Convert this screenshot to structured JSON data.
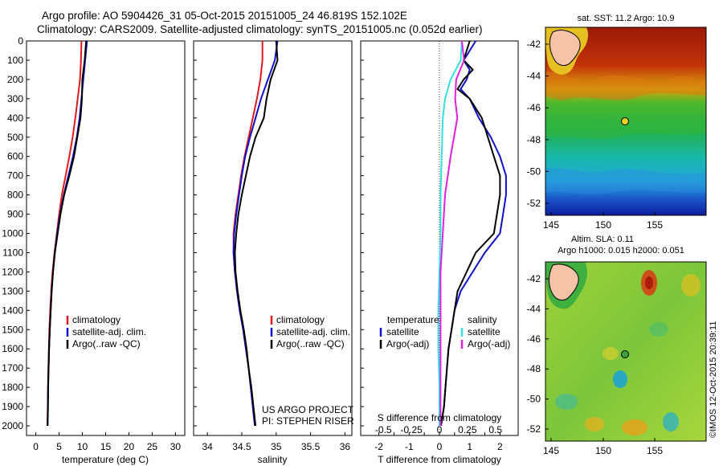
{
  "header": {
    "line1": "Argo profile: AO 5904426_31 05-Oct-2015 20151005_24 46.819S 152.102E",
    "line2": "Climatology: CARS2009. Satellite-adjusted climatology: synTS_20151005.nc (0.052d earlier)"
  },
  "colors": {
    "climatology": "#e31a1c",
    "satellite": "#1010cc",
    "argo": "#000000",
    "sal_satellite": "#33e0e0",
    "sal_argo": "#e020e0"
  },
  "chart_data": [
    {
      "type": "line",
      "xlabel": "temperature (deg C)",
      "ylabel": "",
      "xlim": [
        -2,
        32
      ],
      "ylim": [
        2050,
        0
      ],
      "x_ticks": [
        0,
        5,
        10,
        15,
        20,
        25,
        30
      ],
      "y_ticks": [
        0,
        100,
        200,
        300,
        400,
        500,
        600,
        700,
        800,
        900,
        1000,
        1100,
        1200,
        1300,
        1400,
        1500,
        1600,
        1700,
        1800,
        1900,
        2000
      ],
      "legend": [
        "climatology",
        "satellite-adj. clim.",
        "Argo(..raw -QC)"
      ],
      "legend_position": "lower-center",
      "series": [
        {
          "name": "climatology",
          "depth": [
            0,
            100,
            200,
            300,
            400,
            500,
            600,
            700,
            800,
            900,
            1000,
            1100,
            1200,
            1300,
            1400,
            1500,
            1600,
            1700,
            1800,
            1900,
            2000
          ],
          "values": [
            9.8,
            9.7,
            9.5,
            9.0,
            8.5,
            7.9,
            7.2,
            6.4,
            5.6,
            5.0,
            4.5,
            4.0,
            3.6,
            3.3,
            3.1,
            2.9,
            2.8,
            2.7,
            2.6,
            2.55,
            2.5
          ]
        },
        {
          "name": "satellite-adj. clim.",
          "depth": [
            0,
            100,
            200,
            300,
            400,
            500,
            600,
            700,
            800,
            900,
            1000,
            1100,
            1200,
            1300,
            1400,
            1500,
            1600,
            1700,
            1800,
            1900,
            2000
          ],
          "values": [
            11.0,
            10.6,
            10.2,
            9.8,
            9.4,
            8.8,
            8.0,
            7.0,
            6.0,
            5.2,
            4.6,
            4.1,
            3.7,
            3.4,
            3.2,
            3.0,
            2.85,
            2.75,
            2.65,
            2.6,
            2.55
          ]
        },
        {
          "name": "Argo(..raw -QC)",
          "depth": [
            0,
            100,
            200,
            300,
            400,
            500,
            600,
            700,
            800,
            900,
            1000,
            1100,
            1200,
            1300,
            1400,
            1500,
            1600,
            1700,
            1800,
            1900,
            2000
          ],
          "values": [
            10.8,
            10.5,
            10.0,
            9.9,
            9.6,
            8.9,
            8.2,
            7.2,
            6.1,
            5.3,
            4.7,
            4.1,
            3.7,
            3.4,
            3.2,
            3.0,
            2.85,
            2.75,
            2.65,
            2.6,
            2.5
          ]
        }
      ]
    },
    {
      "type": "line",
      "xlabel": "salinity",
      "ylabel": "",
      "xlim": [
        33.8,
        36.1
      ],
      "ylim": [
        2050,
        0
      ],
      "x_ticks": [
        34,
        34.5,
        35,
        35.5,
        36
      ],
      "legend": [
        "climatology",
        "satellite-adj. clim.",
        "Argo(..raw -QC)"
      ],
      "legend_position": "lower-center",
      "annotation": [
        "US ARGO PROJECT",
        "PI: STEPHEN RISER"
      ],
      "series": [
        {
          "name": "climatology",
          "depth": [
            0,
            100,
            200,
            300,
            400,
            500,
            600,
            700,
            800,
            900,
            1000,
            1100,
            1200,
            1300,
            1400,
            1500,
            1600,
            1700,
            1800,
            1900,
            2000
          ],
          "values": [
            34.8,
            34.8,
            34.77,
            34.72,
            34.66,
            34.6,
            34.54,
            34.49,
            34.45,
            34.41,
            34.38,
            34.38,
            34.4,
            34.43,
            34.47,
            34.52,
            34.56,
            34.6,
            34.63,
            34.66,
            34.69
          ]
        },
        {
          "name": "satellite-adj. clim.",
          "depth": [
            0,
            100,
            200,
            300,
            400,
            500,
            600,
            700,
            800,
            900,
            1000,
            1100,
            1200,
            1300,
            1400,
            1500,
            1600,
            1700,
            1800,
            1900,
            2000
          ],
          "values": [
            35.02,
            34.98,
            34.88,
            34.78,
            34.7,
            34.62,
            34.55,
            34.5,
            34.46,
            34.42,
            34.39,
            34.38,
            34.4,
            34.43,
            34.47,
            34.52,
            34.56,
            34.6,
            34.63,
            34.66,
            34.69
          ]
        },
        {
          "name": "Argo(..raw -QC)",
          "depth": [
            0,
            100,
            200,
            300,
            400,
            500,
            600,
            700,
            800,
            900,
            1000,
            1100,
            1200,
            1300,
            1400,
            1500,
            1600,
            1700,
            1800,
            1900,
            2000
          ],
          "values": [
            35.0,
            35.02,
            34.92,
            34.86,
            34.82,
            34.7,
            34.62,
            34.56,
            34.5,
            34.45,
            34.42,
            34.4,
            34.41,
            34.44,
            34.48,
            34.53,
            34.57,
            34.6,
            34.64,
            34.67,
            34.7
          ]
        }
      ]
    },
    {
      "type": "line",
      "xlabel": "T difference from climatology",
      "xlabel_top": "S difference from climatology",
      "ylabel": "",
      "xlim": [
        -2.6,
        2.6
      ],
      "ylim": [
        2050,
        0
      ],
      "x_ticks": [
        -2,
        -1.5,
        -1,
        -0.5,
        0,
        0.5,
        1,
        1.5,
        2
      ],
      "x_tick_labels": [
        "-2",
        "",
        "-1",
        "",
        "0",
        "",
        "1",
        "",
        "2"
      ],
      "s_ticks": [
        -0.5,
        -0.25,
        0,
        0.25,
        0.5
      ],
      "s_tick_labels": [
        "-0.5",
        "-0.25",
        "0",
        "0.25",
        "0.5"
      ],
      "legend": [
        "temperature",
        "satellite",
        "Argo(-adj)",
        "salinity",
        "satellite",
        "Argo(-adj)"
      ],
      "legend_position": "lower-center",
      "series": [
        {
          "name": "satellite",
          "group": "temperature",
          "depth": [
            0,
            50,
            100,
            150,
            200,
            250,
            300,
            400,
            500,
            600,
            700,
            800,
            900,
            1000,
            1100,
            1200,
            1300,
            1400,
            1500,
            1600,
            1700,
            1800,
            1900,
            2000
          ],
          "values": [
            1.2,
            1.0,
            0.8,
            1.0,
            0.9,
            0.7,
            1.0,
            1.3,
            1.7,
            2.0,
            2.2,
            2.2,
            2.1,
            2.0,
            1.5,
            1.1,
            0.7,
            0.5,
            0.4,
            0.3,
            0.25,
            0.2,
            0.15,
            0.05
          ]
        },
        {
          "name": "Argo(-adj)",
          "group": "temperature",
          "depth": [
            0,
            50,
            100,
            150,
            200,
            250,
            300,
            400,
            500,
            600,
            700,
            800,
            900,
            1000,
            1100,
            1200,
            1300,
            1400,
            1500,
            1600,
            1700,
            1800,
            1900,
            2000
          ],
          "values": [
            1.0,
            0.9,
            0.8,
            1.1,
            0.8,
            0.6,
            1.0,
            1.4,
            1.6,
            1.8,
            2.0,
            2.0,
            1.9,
            1.8,
            1.2,
            0.9,
            0.6,
            0.5,
            0.4,
            0.3,
            0.25,
            0.2,
            0.15,
            0.05
          ]
        },
        {
          "name": "satellite",
          "group": "salinity",
          "depth": [
            0,
            100,
            200,
            300,
            400,
            600,
            800,
            1000,
            1200,
            1400,
            1600,
            1800,
            2000
          ],
          "values": [
            0.2,
            0.19,
            0.1,
            0.05,
            0.03,
            0.02,
            0.01,
            0.01,
            0.0,
            -0.01,
            -0.01,
            0.0,
            0.0
          ]
        },
        {
          "name": "Argo(-adj)",
          "group": "salinity",
          "depth": [
            0,
            100,
            200,
            300,
            400,
            600,
            800,
            1000,
            1200,
            1400,
            1600,
            1800,
            2000
          ],
          "values": [
            0.2,
            0.22,
            0.15,
            0.14,
            0.16,
            0.1,
            0.05,
            0.03,
            0.01,
            0.01,
            0.01,
            0.01,
            0.01
          ]
        }
      ]
    }
  ],
  "map_sst": {
    "title": "sat. SST: 11.2  Argo: 10.9",
    "x_ticks": [
      "145",
      "150",
      "155"
    ],
    "y_ticks": [
      "-42",
      "-44",
      "-46",
      "-48",
      "-50",
      "-52"
    ]
  },
  "map_sla": {
    "title_line1": "Altim. SLA: 0.11",
    "title_line2": "Argo h1000: 0.015 h2000: 0.051",
    "x_ticks": [
      "145",
      "150",
      "155"
    ],
    "y_ticks": [
      "-42",
      "-44",
      "-46",
      "-48",
      "-50",
      "-52"
    ]
  },
  "credit": "©IMOS 12-Oct-2015 20:39:11"
}
